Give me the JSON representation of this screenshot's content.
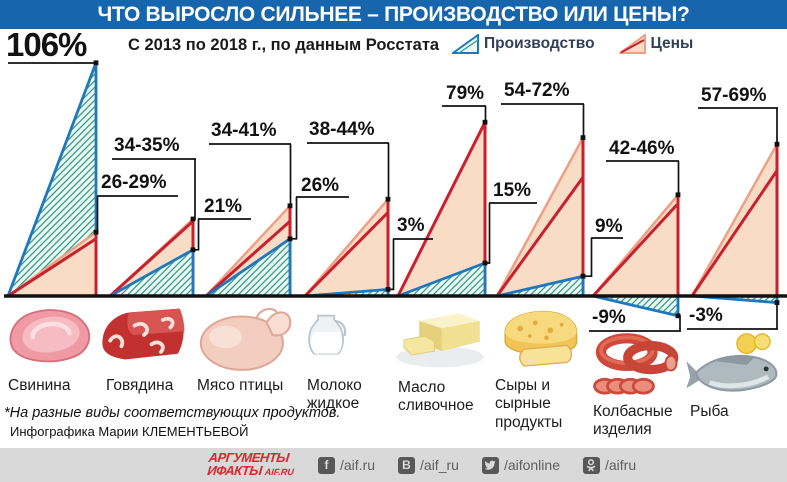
{
  "header": {
    "title": "ЧТО ВЫРОСЛО СИЛЬНЕЕ – ПРОИЗВОДСТВО ИЛИ ЦЕНЫ?"
  },
  "subtitle": "С 2013 по 2018 г., по данным Росстата",
  "legend": {
    "production": "Производство",
    "prices": "Цены"
  },
  "chart_data": {
    "type": "area",
    "title": "ЧТО ВЫРОСЛО СИЛЬНЕЕ – ПРОИЗВОДСТВО ИЛИ ЦЕНЫ?",
    "subtitle": "С 2013 по 2018 г., по данным Росстата",
    "unit": "%",
    "series_names": [
      "Производство",
      "Цены"
    ],
    "products": [
      {
        "name": "Свинина",
        "name_lines": [
          "Свинина"
        ],
        "icon": "pork-icon",
        "production": 106,
        "production_label": "106%",
        "price_low": 26,
        "price_high": 29,
        "price_label": "26-29%"
      },
      {
        "name": "Говядина",
        "name_lines": [
          "Говядина"
        ],
        "icon": "beef-icon",
        "production": 21,
        "production_label": "21%",
        "price_low": 34,
        "price_high": 35,
        "price_label": "34-35%"
      },
      {
        "name": "Мясо птицы",
        "name_lines": [
          "Мясо птицы"
        ],
        "icon": "poultry-icon",
        "production": 26,
        "production_label": "26%",
        "price_low": 34,
        "price_high": 41,
        "price_label": "34-41%"
      },
      {
        "name": "Молоко жидкое",
        "name_lines": [
          "Молоко",
          "жидкое"
        ],
        "icon": "milk-icon",
        "production": 3,
        "production_label": "3%",
        "price_low": 38,
        "price_high": 44,
        "price_label": "38-44%"
      },
      {
        "name": "Масло сливочное",
        "name_lines": [
          "Масло",
          "сливочное"
        ],
        "icon": "butter-icon",
        "production": 15,
        "production_label": "15%",
        "price_low": 79,
        "price_high": 79,
        "price_label": "79%"
      },
      {
        "name": "Сыры и сырные продукты",
        "name_lines": [
          "Сыры и",
          "сырные",
          "продукты"
        ],
        "icon": "cheese-icon",
        "production": 9,
        "production_label": "9%",
        "price_low": 54,
        "price_high": 72,
        "price_label": "54-72%"
      },
      {
        "name": "Колбасные изделия",
        "name_lines": [
          "Колбасные",
          "изделия"
        ],
        "icon": "sausage-icon",
        "production": -9,
        "production_label": "-9%",
        "price_low": 42,
        "price_high": 46,
        "price_label": "42-46%"
      },
      {
        "name": "Рыба",
        "name_lines": [
          "Рыба"
        ],
        "icon": "fish-icon",
        "production": -3,
        "production_label": "-3%",
        "price_low": 57,
        "price_high": 69,
        "price_label": "57-69%"
      }
    ]
  },
  "colors": {
    "header_blue": "#1766ad",
    "production_stroke": "#1e78be",
    "production_fill": "#eef7ef",
    "production_hatch": "#2f9d90",
    "price_stroke": "#c9202d",
    "price_light_stroke": "#eda184",
    "price_fill": "#f9dcc6",
    "baseline": "#111111",
    "footer_bg": "#d9d9d9",
    "logo_red": "#d7282f"
  },
  "footnote": {
    "line1": "*На разные виды соответствующих продуктов.",
    "line2": "Инфографика Марии КЛЕМЕНТЬЕВОЙ"
  },
  "footer": {
    "logo": {
      "line1": "АРГУМЕНТЫ",
      "line2": "ИФАКТЫ",
      "suffix": "AIF.RU"
    },
    "social": [
      {
        "icon": "facebook-icon",
        "handle": "/aif.ru"
      },
      {
        "icon": "vk-icon",
        "handle": "/aif_ru"
      },
      {
        "icon": "twitter-icon",
        "handle": "/aifonline"
      },
      {
        "icon": "odnoklassniki-icon",
        "handle": "/aifru"
      }
    ]
  }
}
